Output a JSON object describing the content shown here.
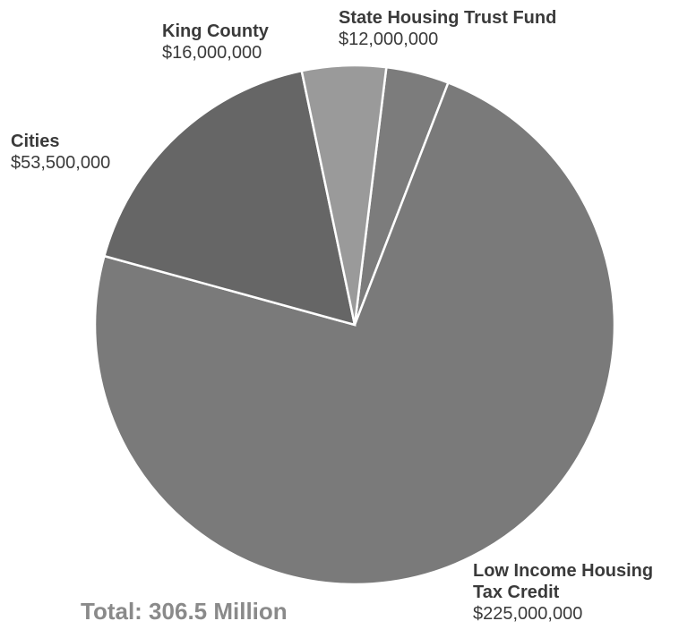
{
  "chart_data": {
    "type": "pie",
    "total_label": "Total: 306.5 Million",
    "slices": [
      {
        "name": "State Housing Trust Fund",
        "value": 12000000,
        "value_label": "$12,000,000",
        "color": "#7c7c7c"
      },
      {
        "name": "Low Income Housing Tax Credit",
        "value": 225000000,
        "value_label": "$225,000,000",
        "color": "#7a7a7a"
      },
      {
        "name": "Cities",
        "value": 53500000,
        "value_label": "$53,500,000",
        "color": "#666666"
      },
      {
        "name": "King County",
        "value": 16000000,
        "value_label": "$16,000,000",
        "color": "#9a9a9a"
      }
    ]
  },
  "labels": {
    "state": {
      "name": "State Housing Trust Fund",
      "value": "$12,000,000"
    },
    "king": {
      "name": "King County",
      "value": "$16,000,000"
    },
    "cities": {
      "name": "Cities",
      "value": "$53,500,000"
    },
    "lihtc": {
      "name_line1": "Low Income Housing",
      "name_line2": "Tax Credit",
      "value": "$225,000,000"
    }
  }
}
